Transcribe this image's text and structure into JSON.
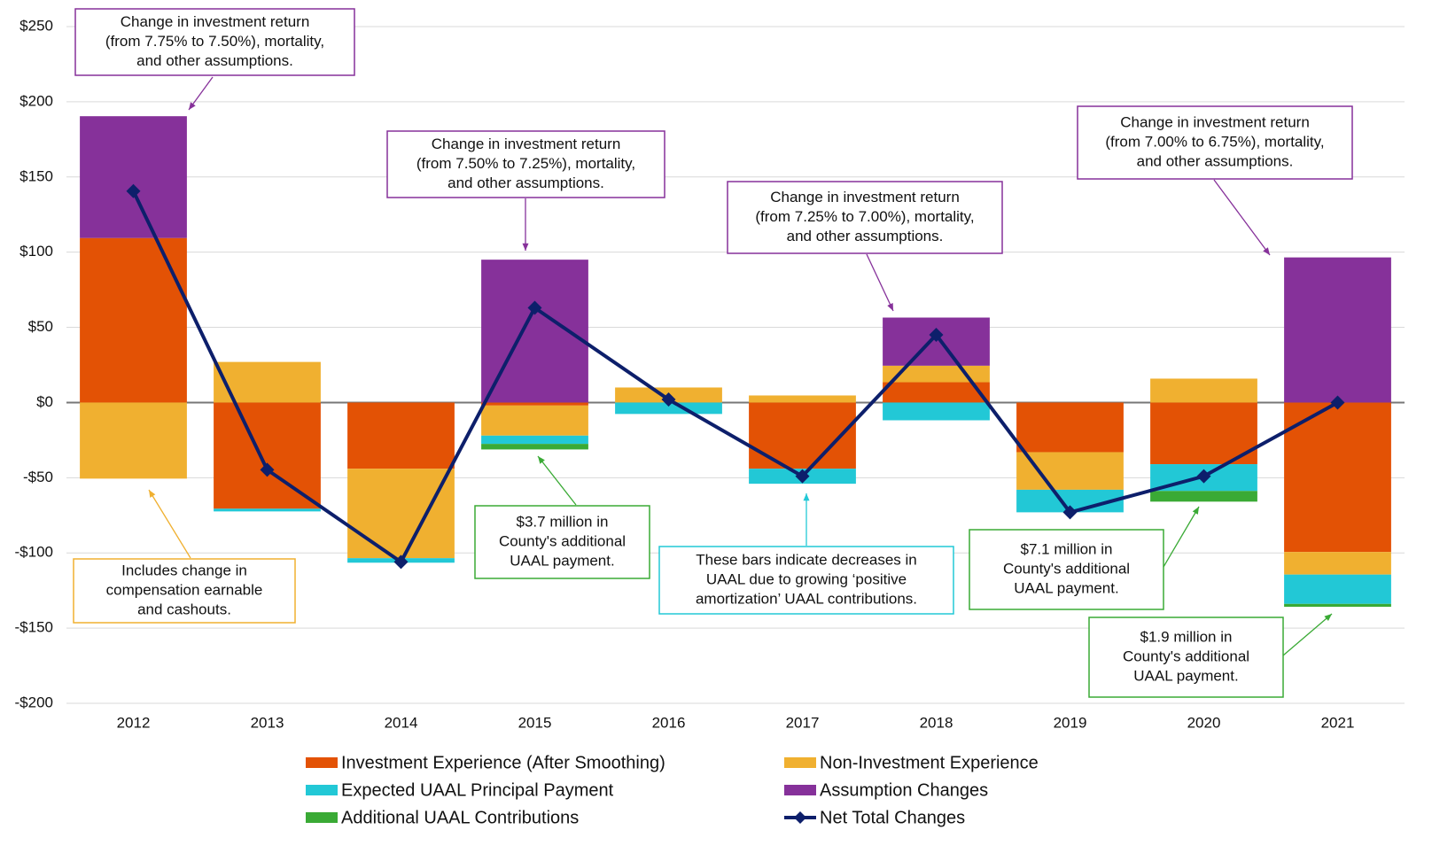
{
  "chart_data": {
    "type": "stacked-bar-line",
    "categories": [
      "2012",
      "2013",
      "2014",
      "2015",
      "2016",
      "2017",
      "2018",
      "2019",
      "2020",
      "2021"
    ],
    "series": [
      {
        "name": "Investment Experience (After Smoothing)",
        "color": "#e35205",
        "kind": "bar",
        "values": [
          109.4,
          -70.6,
          -44,
          -2,
          0,
          -44,
          13.5,
          -33,
          -41,
          -99.4
        ]
      },
      {
        "name": "Non-Investment Experience",
        "color": "#f0b030",
        "kind": "bar",
        "values": [
          -50.6,
          27,
          -59.5,
          -20,
          10,
          4.7,
          11,
          -25,
          15.9,
          -15
        ]
      },
      {
        "name": "Expected UAAL Principal Payment",
        "color": "#22c8d6",
        "kind": "bar",
        "values": [
          0,
          -1.8,
          -3,
          -5.5,
          -7.6,
          -10,
          -11.8,
          -15,
          -17.8,
          -19.5
        ]
      },
      {
        "name": "Assumption Changes",
        "color": "#86319a",
        "kind": "bar",
        "values": [
          81,
          0,
          0,
          95,
          0,
          0,
          32,
          0,
          0,
          96.5
        ]
      },
      {
        "name": "Additional UAAL Contributions",
        "color": "#3aaa35",
        "kind": "bar",
        "values": [
          0,
          0,
          0,
          -3.7,
          0,
          0,
          0,
          0,
          -7.1,
          -1.9
        ]
      },
      {
        "name": "Net Total Changes",
        "color": "#0d1f6b",
        "kind": "line",
        "values": [
          140.6,
          -44.7,
          -106,
          63,
          2,
          -49,
          45,
          -73,
          -49,
          0
        ]
      }
    ],
    "ylim": [
      -200,
      250
    ],
    "yticks": [
      {
        "value": -200,
        "label": "-$200"
      },
      {
        "value": -150,
        "label": "-$150"
      },
      {
        "value": -100,
        "label": "-$100"
      },
      {
        "value": -50,
        "label": "-$50"
      },
      {
        "value": 0,
        "label": "$0"
      },
      {
        "value": 50,
        "label": "$50"
      },
      {
        "value": 100,
        "label": "$100"
      },
      {
        "value": 150,
        "label": "$150"
      },
      {
        "value": 200,
        "label": "$200"
      },
      {
        "value": 250,
        "label": "$250"
      }
    ],
    "grid": true,
    "annotations": [
      {
        "color": "#86319a",
        "text": [
          "Change in investment return",
          "(from 7.75% to 7.50%), mortality,",
          "and other assumptions."
        ]
      },
      {
        "color": "#86319a",
        "text": [
          "Change in investment return",
          "(from 7.50% to 7.25%), mortality,",
          "and other assumptions."
        ]
      },
      {
        "color": "#86319a",
        "text": [
          "Change in investment return",
          "(from 7.25% to 7.00%), mortality,",
          "and other assumptions."
        ]
      },
      {
        "color": "#86319a",
        "text": [
          "Change in investment return",
          "(from 7.00% to 6.75%), mortality,",
          "and other assumptions."
        ]
      },
      {
        "color": "#f0b030",
        "text": [
          "Includes change in",
          "compensation earnable",
          "and cashouts."
        ]
      },
      {
        "color": "#3aaa35",
        "text": [
          "$3.7 million in",
          "County's additional",
          "UAAL payment."
        ]
      },
      {
        "color": "#22c8d6",
        "text": [
          "These bars indicate decreases in",
          "UAAL due to growing ‘positive",
          "amortization’ UAAL contributions."
        ]
      },
      {
        "color": "#3aaa35",
        "text": [
          "$7.1 million in",
          "County's additional",
          "UAAL payment."
        ]
      },
      {
        "color": "#3aaa35",
        "text": [
          "$1.9 million in",
          "County's additional",
          "UAAL payment."
        ]
      }
    ]
  }
}
